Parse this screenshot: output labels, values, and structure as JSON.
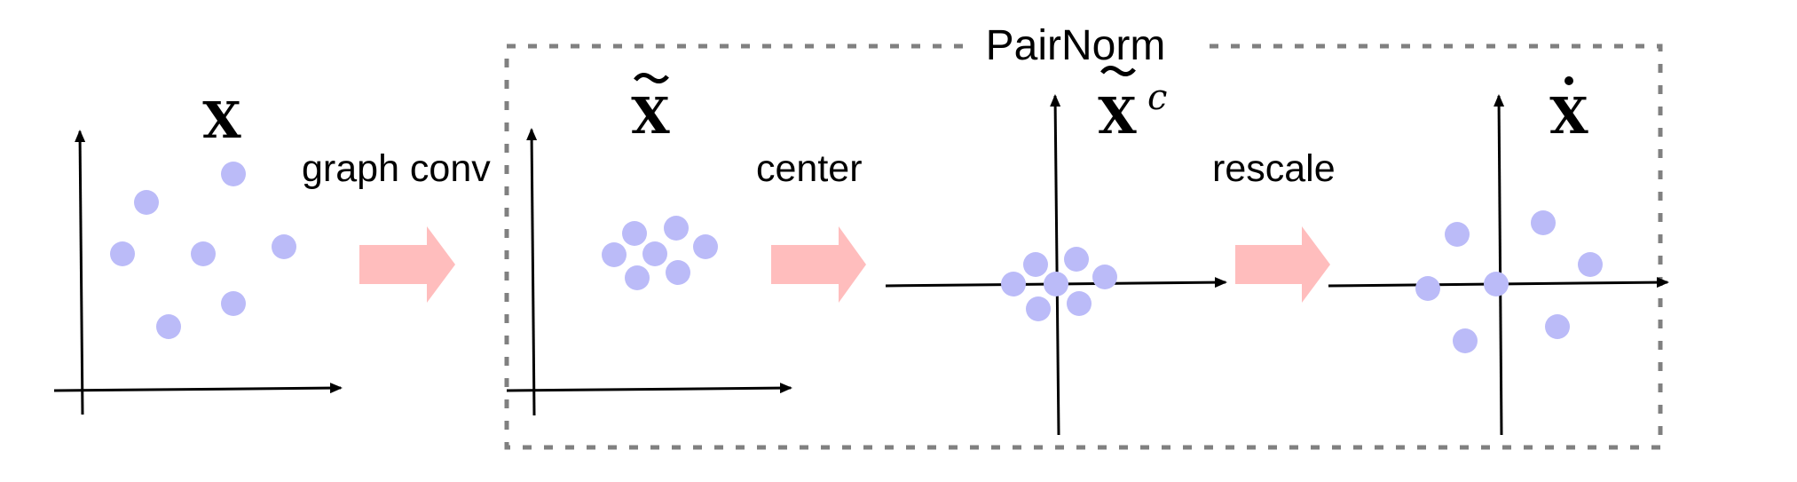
{
  "pairnorm_label": "PairNorm",
  "step_labels": {
    "graph_conv": "graph conv",
    "center": "center",
    "rescale": "rescale"
  },
  "matrices": {
    "x": "X",
    "x_tilde": "X",
    "x_tilde_c": "X",
    "x_tilde_c_superscript": "c",
    "x_dot": "X"
  },
  "colors": {
    "point": "#BBBBF8",
    "arrow": "#FFBDBD",
    "axis": "#000000",
    "dashed_box": "#808080"
  }
}
